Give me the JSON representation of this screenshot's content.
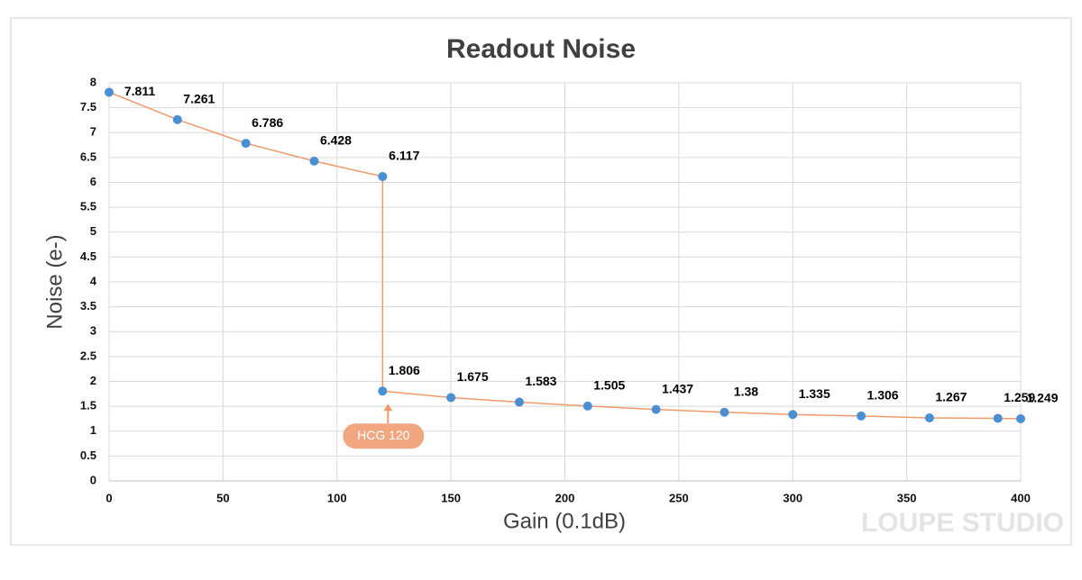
{
  "chart_data": {
    "type": "line",
    "title": "Readout Noise",
    "x_label": "Gain (0.1dB)",
    "y_label": "Noise (e-)",
    "x": [
      0,
      30,
      60,
      90,
      120,
      120,
      150,
      180,
      210,
      240,
      270,
      300,
      330,
      360,
      390,
      400
    ],
    "series": [
      {
        "name": "Readout Noise",
        "color": "#f09a6a",
        "marker_color": "#4a8fd4",
        "values": [
          7.811,
          7.261,
          6.786,
          6.428,
          6.117,
          1.806,
          1.675,
          1.583,
          1.505,
          1.437,
          1.38,
          1.335,
          1.306,
          1.267,
          1.259,
          1.249
        ]
      }
    ],
    "xlim": [
      0,
      400
    ],
    "xticks": [
      0,
      50,
      100,
      150,
      200,
      250,
      300,
      350,
      400
    ],
    "ylim": [
      0,
      8
    ],
    "yticks": [
      0,
      0.5,
      1,
      1.5,
      2,
      2.5,
      3,
      3.5,
      4,
      4.5,
      5,
      5.5,
      6,
      6.5,
      7,
      7.5,
      8
    ],
    "grid": true,
    "annotations": [
      "HCG 120"
    ],
    "watermark": "LOUPE STUDIO"
  }
}
